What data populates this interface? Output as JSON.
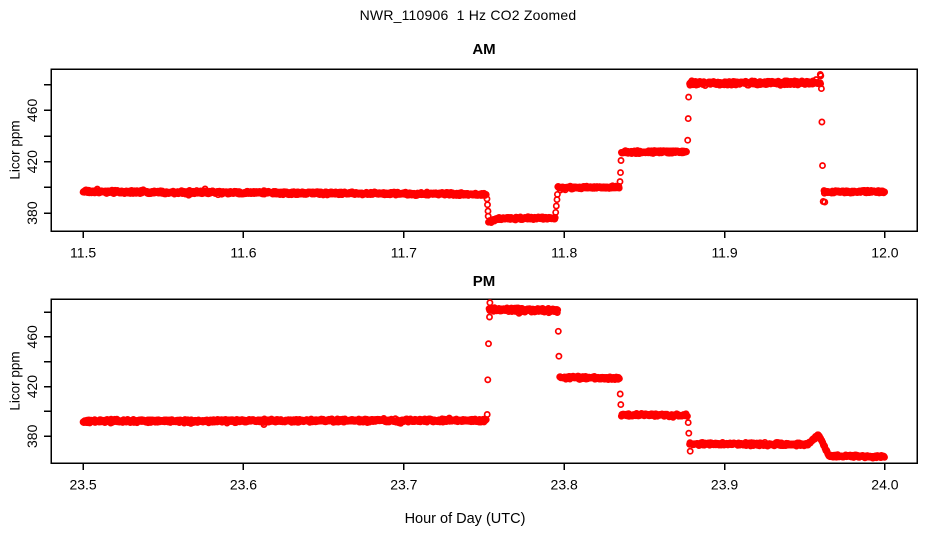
{
  "figure": {
    "title": "NWR_110906  1 Hz CO2 Zoomed",
    "xlabel": "Hour of Day (UTC)",
    "background_color": "#FFFFFF",
    "axis_color": "#000000"
  },
  "chart_data": [
    {
      "panel": "AM",
      "title": "AM",
      "type": "scatter",
      "marker": "open-circle",
      "color": "#FF0000",
      "ylabel": "Licor ppm",
      "sample_rate_hz": 1,
      "sample_interval_hr": 0.000277778,
      "xlim": [
        11.48,
        12.02
      ],
      "ylim": [
        366,
        492.3
      ],
      "x_ticks": [
        11.5,
        11.6,
        11.7,
        11.8,
        11.9,
        12.0
      ],
      "x_tick_labels": [
        "11.5",
        "11.6",
        "11.7",
        "11.8",
        "11.9",
        "12.0"
      ],
      "y_ticks": [
        380,
        400,
        420,
        440,
        460,
        480
      ],
      "y_tick_labels": [
        {
          "v": 380,
          "label": "380"
        },
        {
          "v": 420,
          "label": "420"
        },
        {
          "v": 460,
          "label": "460"
        }
      ],
      "steps": [
        {
          "t0": 11.5,
          "t1": 11.7516,
          "v0": 396.7,
          "v1": 394.6,
          "noise": 1.25
        },
        {
          "t0": 11.7528,
          "t1": 11.758,
          "v0": 372.8,
          "v1": 375.2,
          "noise": 1.0
        },
        {
          "t0": 11.758,
          "t1": 11.7944,
          "v0": 375.6,
          "v1": 376.2,
          "noise": 1.1
        },
        {
          "t0": 11.796,
          "t1": 11.8345,
          "v0": 399.7,
          "v1": 400.2,
          "noise": 1.1
        },
        {
          "t0": 11.8357,
          "t1": 11.8765,
          "v0": 427.4,
          "v1": 427.9,
          "noise": 1.1
        },
        {
          "t0": 11.8782,
          "t1": 11.96,
          "v0": 481.0,
          "v1": 481.5,
          "noise": 1.55
        },
        {
          "t0": 11.962,
          "t1": 12.0,
          "v0": 396.4,
          "v1": 396.8,
          "noise": 1.1
        }
      ],
      "transition_points": [
        [
          11.7519,
          391.0
        ],
        [
          11.7522,
          386.5
        ],
        [
          11.7525,
          381.5
        ],
        [
          11.7526,
          377.5
        ],
        [
          11.7947,
          380.5
        ],
        [
          11.7951,
          385.5
        ],
        [
          11.7955,
          390.5
        ],
        [
          11.7958,
          394.5
        ],
        [
          11.8348,
          404.5
        ],
        [
          11.8351,
          411.5
        ],
        [
          11.8354,
          421.0
        ],
        [
          11.877,
          436.8
        ],
        [
          11.8773,
          453.6
        ],
        [
          11.8776,
          470.4
        ],
        [
          11.9597,
          488.0
        ],
        [
          11.96,
          487.0
        ],
        [
          11.9604,
          477.0
        ],
        [
          11.9607,
          451.0
        ],
        [
          11.9611,
          417.0
        ],
        [
          11.9615,
          389.0
        ],
        [
          11.9625,
          388.5
        ]
      ]
    },
    {
      "panel": "PM",
      "title": "PM",
      "type": "scatter",
      "marker": "open-circle",
      "color": "#FF0000",
      "ylabel": "Licor ppm",
      "sample_rate_hz": 1,
      "sample_interval_hr": 0.000277778,
      "xlim": [
        23.48,
        24.02
      ],
      "ylim": [
        358.5,
        490.5
      ],
      "x_ticks": [
        23.5,
        23.6,
        23.7,
        23.8,
        23.9,
        24.0
      ],
      "x_tick_labels": [
        "23.5",
        "23.6",
        "23.7",
        "23.8",
        "23.9",
        "24.0"
      ],
      "y_ticks": [
        380,
        400,
        420,
        440,
        460,
        480
      ],
      "y_tick_labels": [
        {
          "v": 380,
          "label": "380"
        },
        {
          "v": 420,
          "label": "420"
        },
        {
          "v": 460,
          "label": "460"
        }
      ],
      "steps": [
        {
          "t0": 23.5,
          "t1": 23.7516,
          "v0": 392.2,
          "v1": 392.8,
          "noise": 1.3
        },
        {
          "t0": 23.7532,
          "t1": 23.796,
          "v0": 481.9,
          "v1": 481.1,
          "noise": 1.7
        },
        {
          "t0": 23.7972,
          "t1": 23.8345,
          "v0": 427.3,
          "v1": 426.7,
          "noise": 1.2
        },
        {
          "t0": 23.8357,
          "t1": 23.877,
          "v0": 397.3,
          "v1": 396.7,
          "noise": 1.2
        },
        {
          "t0": 23.8782,
          "t1": 23.952,
          "v0": 373.9,
          "v1": 373.5,
          "noise": 1.3
        },
        {
          "t0": 23.952,
          "t1": 23.9585,
          "v0": 373.7,
          "v1": 381.3,
          "noise": 0.9
        },
        {
          "t0": 23.9585,
          "t1": 23.965,
          "v0": 381.3,
          "v1": 364.4,
          "noise": 0.9
        },
        {
          "t0": 23.965,
          "t1": 24.0,
          "v0": 364.2,
          "v1": 363.6,
          "noise": 1.1
        }
      ],
      "transition_points": [
        [
          23.752,
          397.5
        ],
        [
          23.7524,
          425.5
        ],
        [
          23.7528,
          454.5
        ],
        [
          23.7534,
          476.0
        ],
        [
          23.7537,
          487.5
        ],
        [
          23.7963,
          464.5
        ],
        [
          23.7967,
          444.5
        ],
        [
          23.8349,
          414.0
        ],
        [
          23.8353,
          405.5
        ],
        [
          23.8773,
          391.0
        ],
        [
          23.8777,
          382.5
        ],
        [
          23.8786,
          368.0
        ]
      ]
    }
  ]
}
